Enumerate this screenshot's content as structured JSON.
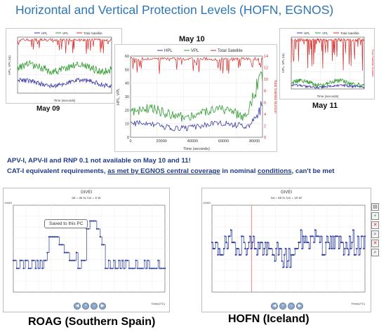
{
  "header": {
    "title": "Horizontal and Vertical Protection Levels (HOFN, EGNOS)"
  },
  "top_charts": {
    "left": {
      "date_label": "May 09",
      "legend": [
        "HPL",
        "VPL",
        "Total Satellite"
      ],
      "ylabel": "HPL, VPL (m)",
      "y2label": "Total Satellite Number",
      "xlabel": "Time (seconds)",
      "colors": {
        "hpl": "#3a3aa8",
        "vpl": "#2f9a2f",
        "sat": "#d62828"
      }
    },
    "center": {
      "date_label": "May 10",
      "legend": [
        "HPL",
        "VPL",
        "Total Satellite"
      ],
      "ylabel": "HPL, VPL",
      "y2label": "Total Satellite Number",
      "xlabel": "Time (seconds)",
      "y_ticks": [
        "0",
        "10",
        "20",
        "30",
        "40",
        "50",
        "60"
      ],
      "x_ticks": [
        "0",
        "20000",
        "40000",
        "60000",
        "80000"
      ],
      "y2_ticks": [
        "14",
        "12",
        "10",
        "8",
        "6",
        "4",
        "2",
        "0"
      ],
      "colors": {
        "hpl": "#3a3aa8",
        "vpl": "#2f9a2f",
        "sat": "#d62828"
      }
    },
    "right": {
      "date_label": "May 11",
      "legend": [
        "HPL",
        "VPL",
        "Total Satellite"
      ],
      "ylabel": "HPL, VPL (m)",
      "y2label": "Total Satellite Number",
      "xlabel": "Time (seconds)",
      "colors": {
        "hpl": "#3a3aa8",
        "vpl": "#2f9a2f",
        "sat": "#d62828"
      }
    }
  },
  "notes": {
    "line1": "APV-I, APV-II and RNP 0.1 not  available on May 10 and 11!",
    "line2_parts": [
      "CAT-I equivalent requirements, ",
      "as met by EGNOS central coverage",
      " in nominal ",
      "conditions",
      ",  can't be met"
    ]
  },
  "givei_left": {
    "title": "GIVEI",
    "subtitle": "lat = 35 N, lon = 5 W",
    "tooltip": "Saved to this PC",
    "y_label": "GIVEI",
    "x_label": "Time(UTC)",
    "caption": "ROAG (Southern Spain)"
  },
  "givei_right": {
    "title": "GIVEI",
    "subtitle": "lat = 65 N, lon = 10 W",
    "y_label": "GIVEI",
    "x_label": "Time(UTC)",
    "caption": "HOFN (Iceland)"
  }
}
